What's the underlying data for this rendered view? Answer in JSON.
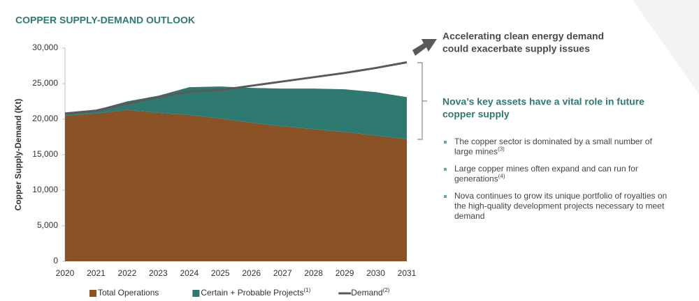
{
  "chart_data": {
    "type": "stacked_area",
    "title": "COPPER SUPPLY-DEMAND OUTLOOK",
    "y_label": "Copper Supply-Demand (Kt)",
    "x": [
      2020,
      2021,
      2022,
      2023,
      2024,
      2025,
      2026,
      2027,
      2028,
      2029,
      2030,
      2031
    ],
    "xlim": [
      2020,
      2031
    ],
    "ylim": [
      0,
      30000
    ],
    "yticks": [
      0,
      {
        "value": 5000,
        "label": "5,000"
      },
      {
        "value": 10000,
        "label": "10,000"
      },
      {
        "value": 15000,
        "label": "15,000"
      },
      {
        "value": 20000,
        "label": "20,000"
      },
      {
        "value": 25000,
        "label": "25,000"
      },
      {
        "value": 30000,
        "label": "30,000"
      }
    ],
    "grid": false,
    "series": [
      {
        "name": "Total Operations",
        "color": "#8b5225",
        "kind": "area",
        "values": [
          20500,
          20800,
          21300,
          20900,
          20600,
          20100,
          19500,
          19000,
          18600,
          18200,
          17700,
          17200
        ]
      },
      {
        "name": "Certain + Probable Projects",
        "note": "(1)",
        "color": "#2f7a70",
        "kind": "area",
        "values": [
          200,
          500,
          1200,
          2400,
          3900,
          4500,
          4900,
          5300,
          5700,
          6000,
          6100,
          5900
        ]
      },
      {
        "name": "Demand",
        "note": "(2)",
        "color": "#58595b",
        "kind": "line",
        "values": [
          20800,
          21200,
          22200,
          23100,
          23900,
          24100,
          24700,
          25300,
          25900,
          26500,
          27200,
          28000
        ]
      }
    ],
    "annotations": {
      "demand": [
        "Accelerating clean energy demand",
        "could exacerbate supply issues"
      ],
      "assets": [
        "Nova’s key assets have a vital role in future",
        "copper supply"
      ],
      "bullets": [
        {
          "lines": [
            "The copper sector is dominated by a small number of",
            "large mines"
          ],
          "note": "(3)"
        },
        {
          "lines": [
            "Large copper mines often expand and can run for",
            "generations"
          ],
          "note": "(4)"
        },
        {
          "lines": [
            "Nova continues to grow its unique portfolio of royalties on",
            "the high-quality development projects necessary to meet",
            "demand"
          ]
        }
      ]
    }
  }
}
